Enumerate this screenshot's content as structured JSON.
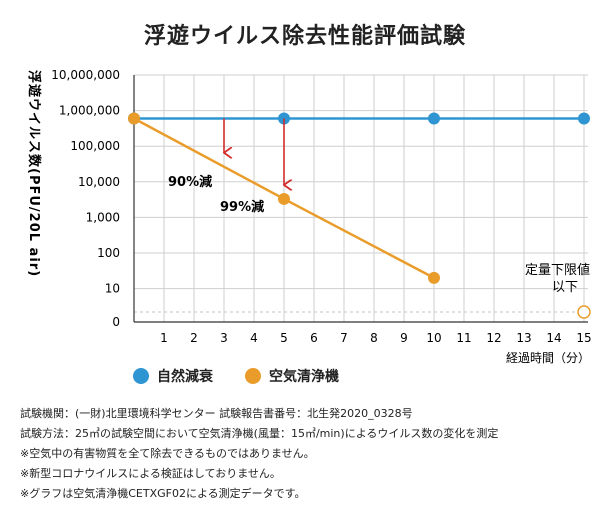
{
  "colors": {
    "natural": "#2f95d2",
    "purifier": "#ea9c2a",
    "arrow": "#d42b2b",
    "grid": "#cfcfcf",
    "lod": "#ea9c2a"
  },
  "chart_data": {
    "type": "line",
    "title": "浮遊ウイルス除去性能評価試験",
    "ylabel": "浮遊ウイルス数(PFU/20L air)",
    "xlabel": "経過時間（分）",
    "y_scale": "log",
    "x_ticks": [
      1,
      2,
      3,
      4,
      5,
      6,
      7,
      8,
      9,
      10,
      11,
      12,
      13,
      14,
      15
    ],
    "y_ticks": [
      {
        "value": 10000000,
        "label": "10,000,000"
      },
      {
        "value": 1000000,
        "label": "1,000,000"
      },
      {
        "value": 100000,
        "label": "100,000"
      },
      {
        "value": 10000,
        "label": "10,000"
      },
      {
        "value": 1000,
        "label": "1,000"
      },
      {
        "value": 100,
        "label": "100"
      },
      {
        "value": 10,
        "label": "10"
      }
    ],
    "y_zero_label": "0",
    "series": [
      {
        "name": "自然減衰",
        "x": [
          0,
          5,
          10,
          15
        ],
        "y": [
          600000,
          600000,
          600000,
          600000
        ]
      },
      {
        "name": "空気清浄機",
        "x": [
          0,
          5,
          10
        ],
        "y": [
          600000,
          3300,
          20
        ]
      }
    ],
    "annotations": [
      {
        "text": "90%減",
        "x": 3
      },
      {
        "text": "99%減",
        "x": 5
      }
    ],
    "detection_limit": {
      "label_line1": "定量下限値",
      "label_line2": "以下",
      "x": 15
    }
  },
  "notes": [
    "試験機関：(一財)北里環境科学センター 試験報告書番号：北生発2020_0328号",
    "試験方法：25㎥の試験空間において空気清浄機(風量：15㎥/min)によるウイルス数の変化を測定",
    "※空気中の有害物質を全て除去できるものではありません。",
    "※新型コロナウイルスによる検証はしておりません。",
    "※グラフは空気清浄機CETXGF02による測定データです。"
  ]
}
